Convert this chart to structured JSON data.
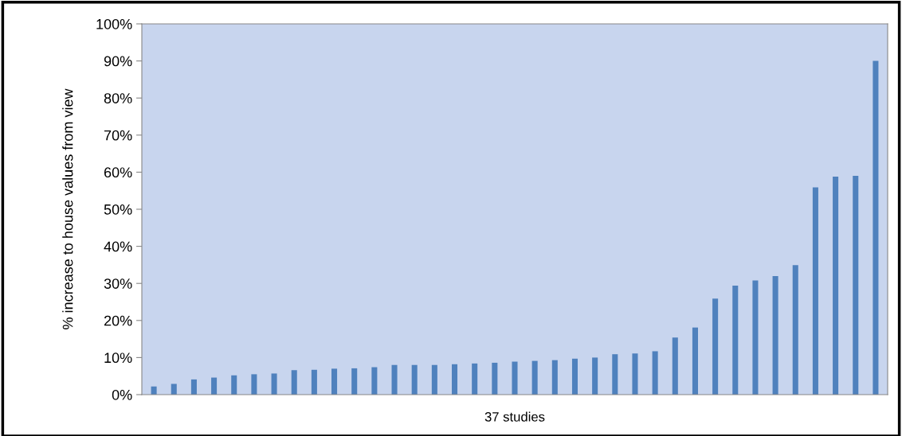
{
  "chart_data": {
    "type": "bar",
    "xlabel": "37 studies",
    "ylabel": "% increase to house values from view",
    "categories": [
      null,
      null,
      null,
      null,
      null,
      null,
      null,
      null,
      null,
      null,
      null,
      null,
      null,
      null,
      null,
      null,
      null,
      null,
      null,
      null,
      null,
      null,
      null,
      null,
      null,
      null,
      null,
      null,
      null,
      null,
      null,
      null,
      null,
      null,
      null,
      null,
      null
    ],
    "values": [
      2.2,
      2.9,
      4.1,
      4.6,
      5.2,
      5.5,
      5.7,
      6.6,
      6.7,
      7.0,
      7.1,
      7.4,
      8.0,
      8.0,
      8.0,
      8.2,
      8.4,
      8.6,
      8.9,
      9.1,
      9.3,
      9.7,
      10.0,
      10.9,
      11.1,
      11.7,
      15.4,
      18.1,
      25.9,
      29.4,
      30.8,
      32.0,
      34.9,
      55.9,
      58.8,
      59.0,
      90.0
    ],
    "color": "#4f81bd",
    "ylim": [
      0,
      100
    ],
    "yticks": [
      {
        "value": 0,
        "label": "0%"
      },
      {
        "value": 10,
        "label": "10%"
      },
      {
        "value": 20,
        "label": "20%"
      },
      {
        "value": 30,
        "label": "30%"
      },
      {
        "value": 40,
        "label": "40%"
      },
      {
        "value": 50,
        "label": "50%"
      },
      {
        "value": 60,
        "label": "60%"
      },
      {
        "value": 70,
        "label": "70%"
      },
      {
        "value": 80,
        "label": "80%"
      },
      {
        "value": 90,
        "label": "90%"
      },
      {
        "value": 100,
        "label": "100%"
      }
    ],
    "grid": false,
    "legend": false
  }
}
